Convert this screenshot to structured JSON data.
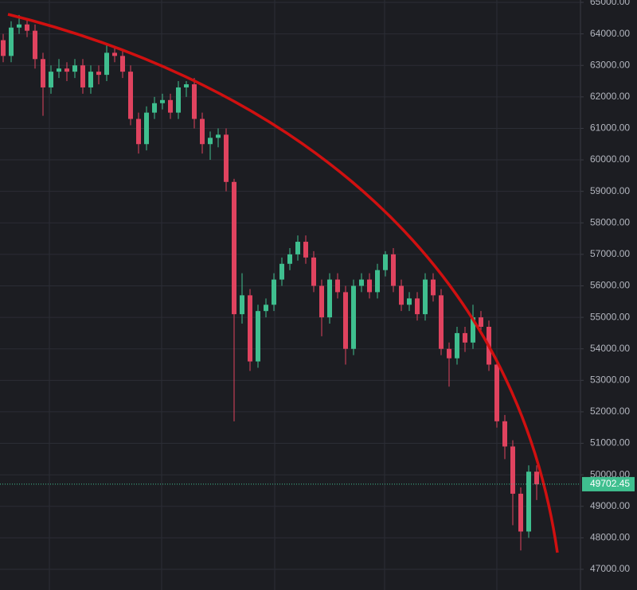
{
  "chart_data": {
    "type": "candlestick",
    "up_color": "#3fbf8f",
    "down_color": "#e0435f",
    "ylim": [
      46343,
      65076
    ],
    "yticks": [
      {
        "value": 47000,
        "label": "47000.00"
      },
      {
        "value": 48000,
        "label": "48000.00"
      },
      {
        "value": 49000,
        "label": "49000.00"
      },
      {
        "value": 50000,
        "label": "50000.00"
      },
      {
        "value": 51000,
        "label": "51000.00"
      },
      {
        "value": 52000,
        "label": "52000.00"
      },
      {
        "value": 53000,
        "label": "53000.00"
      },
      {
        "value": 54000,
        "label": "54000.00"
      },
      {
        "value": 55000,
        "label": "55000.00"
      },
      {
        "value": 56000,
        "label": "56000.00"
      },
      {
        "value": 57000,
        "label": "57000.00"
      },
      {
        "value": 58000,
        "label": "58000.00"
      },
      {
        "value": 59000,
        "label": "59000.00"
      },
      {
        "value": 60000,
        "label": "60000.00"
      },
      {
        "value": 61000,
        "label": "61000.00"
      },
      {
        "value": 62000,
        "label": "62000.00"
      },
      {
        "value": 63000,
        "label": "63000.00"
      },
      {
        "value": 64000,
        "label": "64000.00"
      },
      {
        "value": 65000,
        "label": "65000.00"
      }
    ],
    "grid": true,
    "last_price": 49702.45,
    "open": [
      63800,
      63300,
      64200,
      64300,
      64100,
      63200,
      62300,
      62800,
      62900,
      62800,
      63000,
      62300,
      62800,
      62700,
      63400,
      63300,
      62800,
      61300,
      60500,
      61500,
      61800,
      61900,
      61500,
      62300,
      62400,
      61300,
      60500,
      60700,
      60800,
      59300,
      55100,
      55700,
      53600,
      55200,
      55400,
      56200,
      56700,
      57000,
      57400,
      56900,
      56000,
      55000,
      56200,
      55800,
      54000,
      56000,
      56200,
      55800,
      56500,
      57000,
      56000,
      55400,
      55600,
      55100,
      56200,
      55700,
      54000,
      53700,
      54500,
      54200,
      55000,
      54700,
      53500,
      51700,
      50900,
      49400,
      48200,
      50100
    ],
    "high": [
      64000,
      64400,
      64600,
      64500,
      64300,
      63400,
      63000,
      63200,
      63100,
      63200,
      63200,
      63000,
      63000,
      63700,
      63600,
      63500,
      63000,
      61500,
      61700,
      62000,
      62100,
      62100,
      62500,
      62500,
      62600,
      61500,
      60900,
      61000,
      61000,
      59400,
      56400,
      55900,
      55400,
      55600,
      56400,
      56900,
      57200,
      57600,
      57600,
      57100,
      56200,
      56400,
      56400,
      56000,
      56200,
      56400,
      56400,
      56700,
      57100,
      57200,
      56200,
      55800,
      55800,
      56400,
      56400,
      55900,
      54200,
      54700,
      54700,
      55400,
      55200,
      54900,
      53700,
      51900,
      51100,
      49600,
      50300,
      50300
    ],
    "low": [
      63100,
      63100,
      64000,
      63900,
      62900,
      61400,
      62100,
      62600,
      62500,
      62600,
      62100,
      62100,
      62400,
      62500,
      63100,
      62600,
      61100,
      60200,
      60300,
      61300,
      61600,
      61300,
      61300,
      62000,
      61000,
      60200,
      60000,
      60400,
      59000,
      51700,
      54800,
      53300,
      53400,
      55000,
      55200,
      56000,
      56500,
      56800,
      56700,
      55800,
      54400,
      54800,
      55600,
      53500,
      53800,
      55800,
      55600,
      55600,
      56300,
      55800,
      55200,
      55200,
      54900,
      54900,
      55500,
      53800,
      52800,
      53500,
      53900,
      54000,
      54500,
      53300,
      51500,
      50500,
      48400,
      47600,
      48000,
      49200
    ],
    "close": [
      63300,
      64200,
      64300,
      64100,
      63200,
      62300,
      62800,
      62900,
      62800,
      63000,
      62300,
      62800,
      62700,
      63400,
      63300,
      62800,
      61300,
      60500,
      61500,
      61800,
      61900,
      61500,
      62300,
      62400,
      61300,
      60500,
      60700,
      60800,
      59300,
      55100,
      55700,
      53600,
      55200,
      55400,
      56200,
      56700,
      57000,
      57400,
      56900,
      56000,
      55000,
      56200,
      55800,
      54000,
      56000,
      56200,
      55800,
      56500,
      57000,
      56000,
      55400,
      55600,
      55100,
      56200,
      55700,
      54000,
      53700,
      54500,
      54200,
      55000,
      54700,
      53500,
      51700,
      50900,
      49400,
      48200,
      50100,
      49700
    ]
  }
}
